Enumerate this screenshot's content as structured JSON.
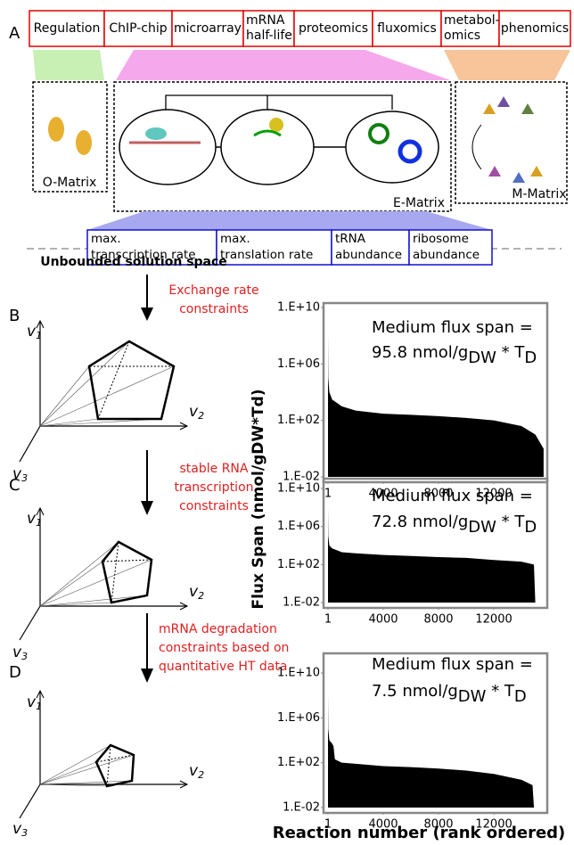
{
  "panel_labels": [
    "A",
    "B",
    "C",
    "D"
  ],
  "omics": [
    [
      "Regulation"
    ],
    [
      "ChIP-chip"
    ],
    [
      "microarray"
    ],
    [
      "mRNA",
      "half-life"
    ],
    [
      "proteomics"
    ],
    [
      "fluxomics"
    ],
    [
      "metabol-",
      "omics"
    ],
    [
      "phenomics"
    ]
  ],
  "matrices": [
    "O-Matrix",
    "E-Matrix",
    "M-Matrix"
  ],
  "enzyme_params": [
    [
      "max.",
      "transcription rate"
    ],
    [
      "max.",
      "translation rate"
    ],
    [
      "tRNA",
      "abundance"
    ],
    [
      "ribosome",
      "abundance"
    ]
  ],
  "flow": {
    "start": "Unbounded solution space",
    "constraints": [
      [
        "Exchange rate",
        "constraints"
      ],
      [
        "stable RNA",
        "transcription",
        "constraints"
      ],
      [
        "mRNA degradation",
        "constraints based on",
        "quantitative HT data"
      ]
    ],
    "axis_base": "v",
    "axis_subs": [
      "1",
      "2",
      "3"
    ]
  },
  "charts_y_label": "Flux Span (nmol/gDW*Td)",
  "charts_x_label": "Reaction number (rank ordered)",
  "chart_data": [
    {
      "type": "area",
      "log_y": true,
      "color": "#000000",
      "annotation": {
        "text": "Medium flux span =",
        "value": "95.8 nmol/g",
        "sub1": "DW",
        "op": " * T",
        "sub2": "D"
      },
      "x": [
        1,
        20,
        100,
        300,
        1000,
        2000,
        4000,
        6000,
        8000,
        10000,
        12000,
        14000,
        15000,
        15600
      ],
      "values": [
        100000000.0,
        100000.0,
        10000.0,
        3000,
        1000,
        500,
        300,
        250,
        200,
        150,
        100,
        40,
        10,
        1
      ],
      "xlim": [
        1,
        15800
      ],
      "ylim": [
        0.01,
        10000000000.0
      ],
      "xticks": [
        1,
        4000,
        8000,
        12000
      ],
      "yticks": [
        {
          "value": 10000000000.0,
          "label": "1.E+10"
        },
        {
          "value": 1000000.0,
          "label": "1.E+06"
        },
        {
          "value": 100,
          "label": "1.E+02"
        },
        {
          "value": 0.01,
          "label": "1.E-02"
        }
      ]
    },
    {
      "type": "area",
      "log_y": true,
      "color": "#000000",
      "annotation": {
        "text": "Medium flux span =",
        "value": "72.8 nmol/g",
        "sub1": "DW",
        "op": " * T",
        "sub2": "D"
      },
      "x": [
        1,
        20,
        100,
        300,
        1000,
        2000,
        4000,
        6000,
        8000,
        10000,
        12000,
        14000,
        14900,
        15000,
        15800
      ],
      "values": [
        100000000.0,
        100000.0,
        10000.0,
        5000,
        2000,
        1500,
        1000,
        800,
        600,
        500,
        300,
        200,
        100,
        0.01,
        0.01
      ],
      "xlim": [
        1,
        15800
      ],
      "ylim": [
        0.01,
        10000000000.0
      ],
      "xticks": [
        1,
        4000,
        8000,
        12000
      ],
      "yticks": [
        {
          "value": 10000000000.0,
          "label": "1.E+10"
        },
        {
          "value": 1000000.0,
          "label": "1.E+06"
        },
        {
          "value": 100,
          "label": "1.E+02"
        },
        {
          "value": 0.01,
          "label": "1.E-02"
        }
      ]
    },
    {
      "type": "area",
      "log_y": true,
      "color": "#000000",
      "annotation": {
        "text": "Medium flux span =",
        "value": "7.5 nmol/g",
        "sub1": "DW",
        "op": " * T",
        "sub2": "D"
      },
      "x": [
        1,
        20,
        100,
        300,
        400,
        500,
        1000,
        2000,
        4000,
        6000,
        8000,
        10000,
        12000,
        14000,
        14800,
        14900,
        15800
      ],
      "values": [
        100000000.0,
        100000.0,
        10000.0,
        5000,
        3000,
        200,
        100,
        80,
        50,
        40,
        30,
        20,
        10,
        3,
        1,
        0.01,
        0.01
      ],
      "xlim": [
        1,
        15800
      ],
      "ylim": [
        0.01,
        10000000000.0
      ],
      "xticks": [
        1,
        4000,
        8000,
        12000
      ],
      "yticks": [
        {
          "value": 10000000000.0,
          "label": "1.E+10"
        },
        {
          "value": 1000000.0,
          "label": "1.E+06"
        },
        {
          "value": 100,
          "label": "1.E+02"
        },
        {
          "value": 0.01,
          "label": "1.E-02"
        }
      ]
    }
  ]
}
